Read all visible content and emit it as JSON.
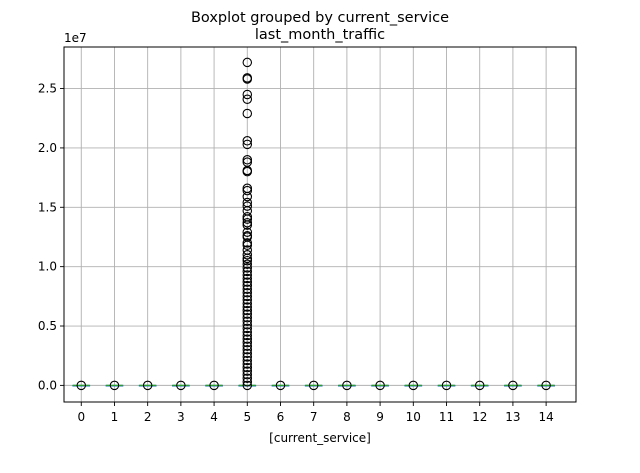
{
  "chart_data": {
    "type": "boxplot",
    "title": "Boxplot grouped by current_service",
    "subtitle": "last_month_traffic",
    "xlabel": "[current_service]",
    "ylabel": "",
    "y_offset_label": "1e7",
    "ylim": [
      -1400000,
      28500000
    ],
    "yticks": [
      0,
      5000000,
      10000000,
      15000000,
      20000000,
      25000000
    ],
    "ytick_labels": [
      "0.0",
      "0.5",
      "1.0",
      "1.5",
      "2.0",
      "2.5"
    ],
    "grid": true,
    "categories": [
      "0",
      "1",
      "2",
      "3",
      "4",
      "5",
      "6",
      "7",
      "8",
      "9",
      "10",
      "11",
      "12",
      "13",
      "14"
    ],
    "groups": [
      {
        "category": "0",
        "median": 0,
        "q1": 0,
        "q3": 0,
        "whisker_low": 0,
        "whisker_high": 0,
        "fliers": [
          0
        ]
      },
      {
        "category": "1",
        "median": 0,
        "q1": 0,
        "q3": 0,
        "whisker_low": 0,
        "whisker_high": 0,
        "fliers": [
          0
        ]
      },
      {
        "category": "2",
        "median": 0,
        "q1": 0,
        "q3": 0,
        "whisker_low": 0,
        "whisker_high": 0,
        "fliers": [
          0
        ]
      },
      {
        "category": "3",
        "median": 0,
        "q1": 0,
        "q3": 0,
        "whisker_low": 0,
        "whisker_high": 0,
        "fliers": [
          0
        ]
      },
      {
        "category": "4",
        "median": 0,
        "q1": 0,
        "q3": 0,
        "whisker_low": 0,
        "whisker_high": 0,
        "fliers": [
          0
        ]
      },
      {
        "category": "5",
        "median": 0,
        "q1": 0,
        "q3": 0,
        "whisker_low": 0,
        "whisker_high": 0,
        "fliers": [
          27200000,
          25900000,
          25800000,
          24500000,
          24100000,
          22900000,
          20600000,
          20300000,
          19000000,
          18800000,
          18100000,
          18000000,
          16600000,
          16400000,
          15900000,
          15400000,
          15100000,
          14700000,
          14200000,
          14000000,
          13700000,
          13500000,
          12900000,
          12600000,
          12500000,
          12000000,
          11800000,
          11400000,
          11000000,
          10700000,
          10500000,
          10200000,
          9900000,
          9600000,
          9300000,
          9000000,
          8700000,
          8400000,
          8100000,
          7800000,
          7500000,
          7200000,
          6900000,
          6600000,
          6300000,
          6000000,
          5700000,
          5400000,
          5100000,
          4800000,
          4500000,
          4200000,
          3900000,
          3600000,
          3300000,
          3000000,
          2700000,
          2400000,
          2100000,
          1800000,
          1500000,
          1200000,
          900000,
          600000,
          300000,
          0
        ]
      },
      {
        "category": "6",
        "median": 0,
        "q1": 0,
        "q3": 0,
        "whisker_low": 0,
        "whisker_high": 0,
        "fliers": [
          0
        ]
      },
      {
        "category": "7",
        "median": 0,
        "q1": 0,
        "q3": 0,
        "whisker_low": 0,
        "whisker_high": 0,
        "fliers": [
          0
        ]
      },
      {
        "category": "8",
        "median": 0,
        "q1": 0,
        "q3": 0,
        "whisker_low": 0,
        "whisker_high": 0,
        "fliers": [
          0
        ]
      },
      {
        "category": "9",
        "median": 0,
        "q1": 0,
        "q3": 0,
        "whisker_low": 0,
        "whisker_high": 0,
        "fliers": [
          0
        ]
      },
      {
        "category": "10",
        "median": 0,
        "q1": 0,
        "q3": 0,
        "whisker_low": 0,
        "whisker_high": 0,
        "fliers": [
          0
        ]
      },
      {
        "category": "11",
        "median": 0,
        "q1": 0,
        "q3": 0,
        "whisker_low": 0,
        "whisker_high": 0,
        "fliers": [
          0
        ]
      },
      {
        "category": "12",
        "median": 0,
        "q1": 0,
        "q3": 0,
        "whisker_low": 0,
        "whisker_high": 0,
        "fliers": [
          0
        ]
      },
      {
        "category": "13",
        "median": 0,
        "q1": 0,
        "q3": 0,
        "whisker_low": 0,
        "whisker_high": 0,
        "fliers": [
          0
        ]
      },
      {
        "category": "14",
        "median": 0,
        "q1": 0,
        "q3": 0,
        "whisker_low": 0,
        "whisker_high": 0,
        "fliers": [
          0
        ]
      }
    ],
    "colors": {
      "box": "#1f77b4",
      "median": "#2ca02c",
      "flier": "#000000",
      "grid": "#b0b0b0"
    }
  }
}
